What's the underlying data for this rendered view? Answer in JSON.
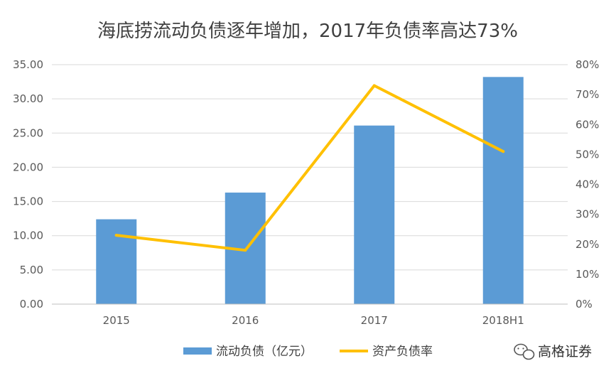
{
  "chart_data": {
    "type": "bar+line",
    "title": "海底捞流动负债逐年增加，2017年负债率高达73%",
    "categories": [
      "2015",
      "2016",
      "2017",
      "2018H1"
    ],
    "series": [
      {
        "name": "流动负债（亿元）",
        "type": "bar",
        "axis": "left",
        "values": [
          12.4,
          16.3,
          26.1,
          33.2
        ]
      },
      {
        "name": "资产负债率",
        "type": "line",
        "axis": "right",
        "values": [
          0.23,
          0.18,
          0.73,
          0.51
        ]
      }
    ],
    "y_left": {
      "min": 0,
      "max": 35,
      "step": 5,
      "ticks": [
        "0.00",
        "5.00",
        "10.00",
        "15.00",
        "20.00",
        "25.00",
        "30.00",
        "35.00"
      ]
    },
    "y_right": {
      "min": 0,
      "max": 0.8,
      "step": 0.1,
      "ticks": [
        "0%",
        "10%",
        "20%",
        "30%",
        "40%",
        "50%",
        "60%",
        "70%",
        "80%"
      ]
    },
    "grid": true,
    "legend_position": "bottom"
  },
  "colors": {
    "bar": "#5b9bd5",
    "line": "#ffc000",
    "grid": "#d9d9d9",
    "axis": "#bfbfbf"
  },
  "watermark": {
    "text": "高格证券",
    "icon": "wechat-icon"
  }
}
